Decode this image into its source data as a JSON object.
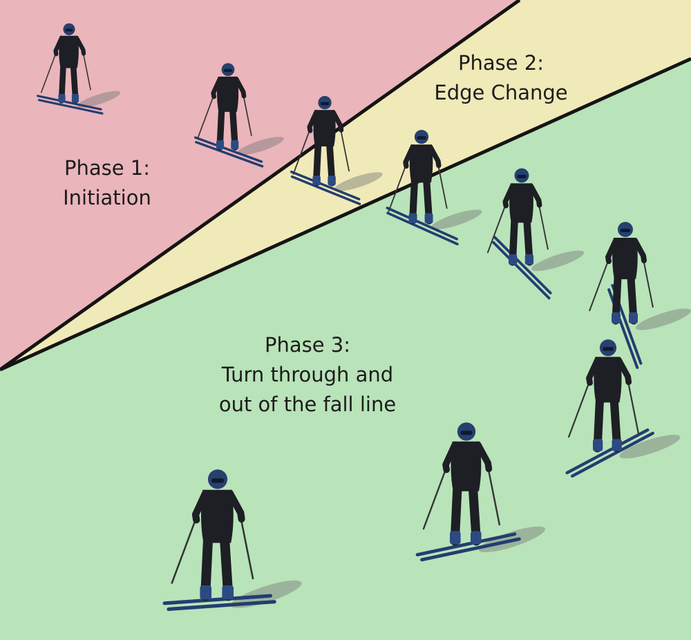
{
  "phases": [
    {
      "id": "phase-1",
      "heading": "Phase 1:",
      "subtitle": "Initiation",
      "color": "#eab5bb"
    },
    {
      "id": "phase-2",
      "heading": "Phase 2:",
      "subtitle": "Edge Change",
      "color": "#f0e9b8"
    },
    {
      "id": "phase-3",
      "heading": "Phase 3:",
      "subtitle_lines": [
        "Turn through and",
        "out of the fall line"
      ],
      "color": "#b9e3b9"
    }
  ],
  "colors": {
    "divider": "#141414",
    "suit": "#1d1f24",
    "helmet": "#27406e",
    "boot": "#2c4a82",
    "ski": "#233d70",
    "shadow": "#777777"
  },
  "skier_count": 9
}
